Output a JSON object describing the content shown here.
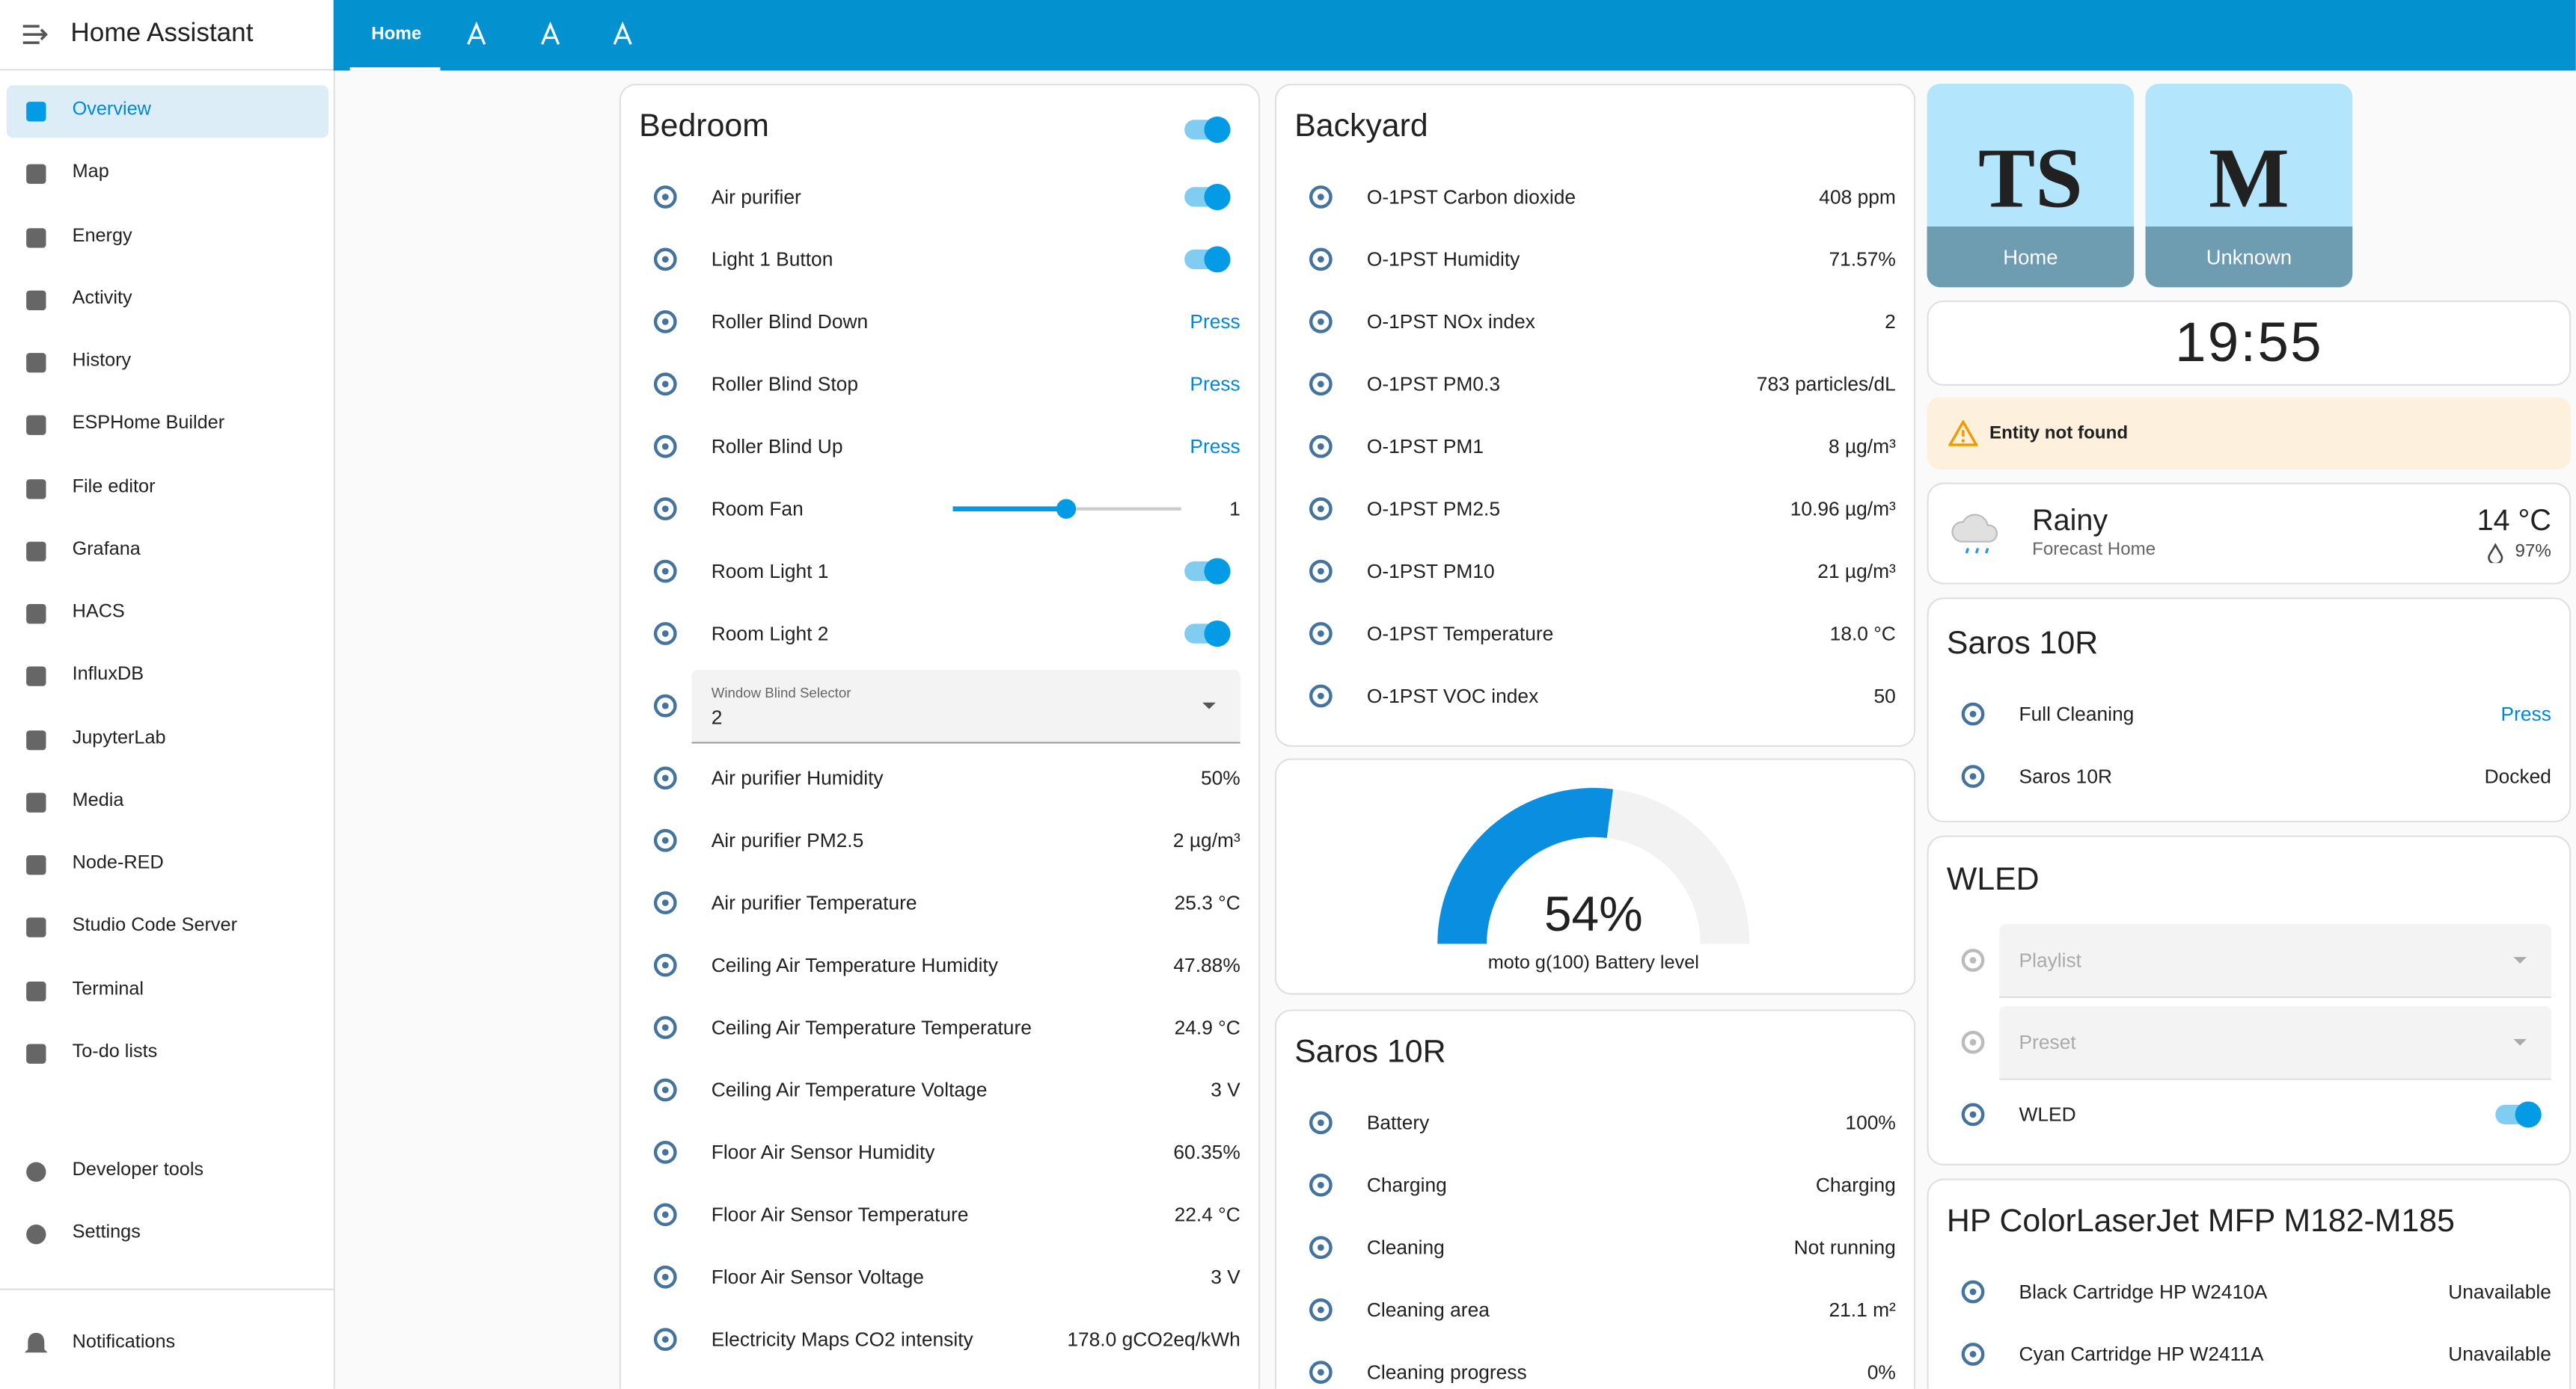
{
  "app": {
    "title": "Home Assistant"
  },
  "sidebar": {
    "items": [
      "Overview",
      "Map",
      "Energy",
      "Activity",
      "History",
      "ESPHome Builder",
      "File editor",
      "Grafana",
      "HACS",
      "InfluxDB",
      "JupyterLab",
      "Media",
      "Node-RED",
      "Studio Code Server",
      "Terminal",
      "To-do lists"
    ],
    "selected": 0,
    "bottom": [
      "Developer tools",
      "Settings"
    ],
    "notifications": "Notifications"
  },
  "tabs": [
    "Home"
  ],
  "bedroom": {
    "title": "Bedroom",
    "header_toggle": true,
    "rows": [
      {
        "name": "Air purifier",
        "toggle": true
      },
      {
        "name": "Light 1 Button",
        "toggle": true
      },
      {
        "name": "Roller Blind Down",
        "action": "Press"
      },
      {
        "name": "Roller Blind Stop",
        "action": "Press"
      },
      {
        "name": "Roller Blind Up",
        "action": "Press"
      },
      {
        "name": "Room Fan",
        "state": "1",
        "slider": true
      },
      {
        "name": "Room Light 1",
        "toggle": true
      },
      {
        "name": "Room Light 2",
        "toggle": true
      },
      {
        "label": "Window Blind Selector",
        "value": "2"
      },
      {
        "name": "Air purifier Humidity",
        "state": "50%"
      },
      {
        "name": "Air purifier PM2.5",
        "state": "2 µg/m³"
      },
      {
        "name": "Air purifier Temperature",
        "state": "25.3 °C"
      },
      {
        "name": "Ceiling Air Temperature Humidity",
        "state": "47.88%"
      },
      {
        "name": "Ceiling Air Temperature Temperature",
        "state": "24.9 °C"
      },
      {
        "name": "Ceiling Air Temperature Voltage",
        "state": "3 V"
      },
      {
        "name": "Floor Air Sensor Humidity",
        "state": "60.35%"
      },
      {
        "name": "Floor Air Sensor Temperature",
        "state": "22.4 °C"
      },
      {
        "name": "Floor Air Sensor Voltage",
        "state": "3 V"
      },
      {
        "name": "Electricity Maps CO2 intensity",
        "state": "178.0 gCO2eq/kWh"
      }
    ]
  },
  "backyard": {
    "title": "Backyard",
    "rows": [
      {
        "name": "O-1PST Carbon dioxide",
        "state": "408 ppm"
      },
      {
        "name": "O-1PST Humidity",
        "state": "71.57%"
      },
      {
        "name": "O-1PST NOx index",
        "state": "2"
      },
      {
        "name": "O-1PST PM0.3",
        "state": "783 particles/dL"
      },
      {
        "name": "O-1PST PM1",
        "state": "8 µg/m³"
      },
      {
        "name": "O-1PST PM2.5",
        "state": "10.96 µg/m³"
      },
      {
        "name": "O-1PST PM10",
        "state": "21 µg/m³"
      },
      {
        "name": "O-1PST Temperature",
        "state": "18.0 °C"
      },
      {
        "name": "O-1PST VOC index",
        "state": "50"
      }
    ]
  },
  "gauge": {
    "value": 54,
    "unit": "%",
    "range": [
      0,
      100
    ],
    "label": "moto g(100) Battery level"
  },
  "saros_main": {
    "title": "Saros 10R",
    "rows": [
      {
        "name": "Battery",
        "state": "100%"
      },
      {
        "name": "Charging",
        "state": "Charging"
      },
      {
        "name": "Cleaning",
        "state": "Not running"
      },
      {
        "name": "Cleaning area",
        "state": "21.1 m²"
      },
      {
        "name": "Cleaning progress",
        "state": "0%"
      }
    ]
  },
  "persons": [
    {
      "initials": "TS",
      "state": "Home"
    },
    {
      "initials": "M",
      "state": "Unknown"
    }
  ],
  "clock": {
    "time": "19:55"
  },
  "alert": {
    "text": "Entity not found"
  },
  "weather": {
    "condition": "Rainy",
    "name": "Forecast Home",
    "temperature": "14 °C",
    "humidity": "97%"
  },
  "saros": {
    "title": "Saros 10R",
    "rows": [
      {
        "name": "Full Cleaning",
        "action": "Press"
      },
      {
        "name": "Saros 10R",
        "state": "Docked"
      }
    ]
  },
  "wled": {
    "title": "WLED",
    "rows": [
      {
        "label": "Playlist",
        "disabled": true
      },
      {
        "label": "Preset",
        "disabled": true
      },
      {
        "name": "WLED",
        "toggle": true
      }
    ]
  },
  "printer": {
    "title": "HP ColorLaserJet MFP M182-M185",
    "rows": [
      {
        "name": "Black Cartridge HP W2410A",
        "state": "Unavailable"
      },
      {
        "name": "Cyan Cartridge HP W2411A",
        "state": "Unavailable"
      }
    ]
  }
}
